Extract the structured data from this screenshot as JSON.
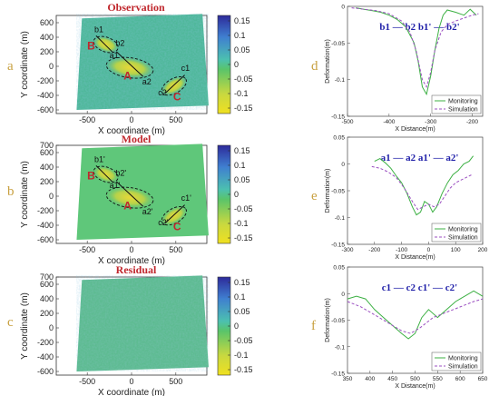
{
  "maps": {
    "titles": [
      "Observation",
      "Model",
      "Residual"
    ],
    "panel_labels": [
      "a",
      "b",
      "c"
    ],
    "xlabel": "X coordinate (m)",
    "ylabel": "Y coordinate (m)",
    "xticks": [
      -500,
      0,
      500
    ],
    "yticks": [
      700,
      600,
      400,
      200,
      0,
      -200,
      -400,
      -600
    ],
    "colorbar_ticks": [
      0.15,
      0.1,
      0.05,
      0,
      -0.05,
      -0.1,
      -0.15
    ],
    "colorbar_colors": [
      "#2d2a9a",
      "#3f7fd0",
      "#4cc0b0",
      "#59c46a",
      "#c8d840",
      "#f0e020"
    ],
    "zones": {
      "A": "A",
      "B": "B",
      "C": "C"
    },
    "obs_annotations": {
      "b1": "b1",
      "b2": "b2",
      "a1": "a1",
      "a2": "a2",
      "c1": "c1",
      "c2": "c2"
    },
    "model_annotations": {
      "b1": "b1'",
      "b2": "b2'",
      "a1": "a1'",
      "a2": "a2'",
      "c1": "c1'",
      "c2": "c2'"
    }
  },
  "chart_data": [
    {
      "type": "line",
      "panel": "d",
      "title": "b1 — b2  b1' — b2'",
      "xlabel": "X Distance(m)",
      "ylabel": "Deformation(m)",
      "xlim": [
        -500,
        -175
      ],
      "ylim": [
        -0.15,
        0
      ],
      "xticks": [
        -500,
        -400,
        -300,
        -200
      ],
      "yticks": [
        0,
        -0.05,
        -0.1,
        -0.15
      ],
      "series": [
        {
          "name": "Monitoring",
          "color": "#3cb043",
          "dash": false,
          "x": [
            -480,
            -460,
            -440,
            -420,
            -400,
            -380,
            -360,
            -340,
            -330,
            -320,
            -310,
            -300,
            -290,
            -280,
            -270,
            -260,
            -240,
            -220,
            -205,
            -190
          ],
          "y": [
            -0.002,
            -0.004,
            -0.006,
            -0.008,
            -0.012,
            -0.018,
            -0.028,
            -0.05,
            -0.075,
            -0.11,
            -0.12,
            -0.095,
            -0.06,
            -0.03,
            -0.012,
            -0.005,
            -0.008,
            -0.012,
            -0.004,
            -0.012
          ]
        },
        {
          "name": "Simulation",
          "color": "#9b4fc1",
          "dash": true,
          "x": [
            -490,
            -460,
            -430,
            -400,
            -370,
            -350,
            -335,
            -320,
            -310,
            -300,
            -290,
            -275,
            -260,
            -240,
            -220,
            -200,
            -185
          ],
          "y": [
            -0.002,
            -0.004,
            -0.006,
            -0.01,
            -0.02,
            -0.035,
            -0.06,
            -0.1,
            -0.11,
            -0.09,
            -0.06,
            -0.035,
            -0.025,
            -0.02,
            -0.016,
            -0.012,
            -0.01
          ]
        }
      ],
      "legend": "bottom-right"
    },
    {
      "type": "line",
      "panel": "e",
      "title": "a1 — a2  a1' — a2'",
      "xlabel": "X Distance(m)",
      "ylabel": "Deformation(m)",
      "xlim": [
        -300,
        200
      ],
      "ylim": [
        -0.15,
        0.05
      ],
      "xticks": [
        -300,
        -200,
        -100,
        0,
        100,
        200
      ],
      "yticks": [
        0.05,
        0,
        -0.05,
        -0.1,
        -0.15
      ],
      "series": [
        {
          "name": "Monitoring",
          "color": "#3cb043",
          "dash": false,
          "x": [
            -200,
            -180,
            -160,
            -140,
            -120,
            -100,
            -80,
            -60,
            -45,
            -30,
            -15,
            0,
            15,
            30,
            50,
            70,
            90,
            110,
            130,
            150,
            165
          ],
          "y": [
            0.005,
            0.01,
            0.002,
            -0.008,
            -0.022,
            -0.035,
            -0.055,
            -0.08,
            -0.095,
            -0.09,
            -0.07,
            -0.075,
            -0.09,
            -0.08,
            -0.055,
            -0.035,
            -0.02,
            -0.012,
            0.0,
            0.005,
            0.015
          ]
        },
        {
          "name": "Simulation",
          "color": "#9b4fc1",
          "dash": true,
          "x": [
            -210,
            -180,
            -150,
            -120,
            -90,
            -60,
            -40,
            -20,
            0,
            20,
            40,
            60,
            80,
            100,
            120,
            140,
            160
          ],
          "y": [
            -0.005,
            -0.008,
            -0.015,
            -0.025,
            -0.045,
            -0.07,
            -0.085,
            -0.08,
            -0.075,
            -0.08,
            -0.075,
            -0.06,
            -0.045,
            -0.035,
            -0.03,
            -0.025,
            -0.02
          ]
        }
      ],
      "legend": "bottom-right"
    },
    {
      "type": "line",
      "panel": "f",
      "title": "c1 — c2  c1' — c2'",
      "xlabel": "X Distance(m)",
      "ylabel": "Deformation(m)",
      "xlim": [
        350,
        650
      ],
      "ylim": [
        -0.15,
        0.05
      ],
      "xticks": [
        350,
        400,
        450,
        500,
        550,
        600,
        650
      ],
      "yticks": [
        0.05,
        0,
        -0.05,
        -0.1,
        -0.15
      ],
      "series": [
        {
          "name": "Monitoring",
          "color": "#3cb043",
          "dash": false,
          "x": [
            350,
            370,
            390,
            410,
            430,
            450,
            470,
            485,
            500,
            515,
            530,
            550,
            570,
            590,
            610,
            630,
            650
          ],
          "y": [
            -0.01,
            -0.005,
            -0.01,
            -0.03,
            -0.045,
            -0.06,
            -0.075,
            -0.085,
            -0.075,
            -0.045,
            -0.03,
            -0.045,
            -0.03,
            -0.015,
            -0.005,
            0.005,
            -0.005
          ]
        },
        {
          "name": "Simulation",
          "color": "#9b4fc1",
          "dash": true,
          "x": [
            350,
            380,
            410,
            440,
            470,
            490,
            510,
            540,
            570,
            600,
            630,
            650
          ],
          "y": [
            -0.015,
            -0.025,
            -0.04,
            -0.055,
            -0.07,
            -0.075,
            -0.065,
            -0.045,
            -0.035,
            -0.025,
            -0.015,
            -0.01
          ]
        }
      ],
      "legend": "bottom-right"
    }
  ],
  "chart_panel_labels": [
    "d",
    "e",
    "f"
  ]
}
